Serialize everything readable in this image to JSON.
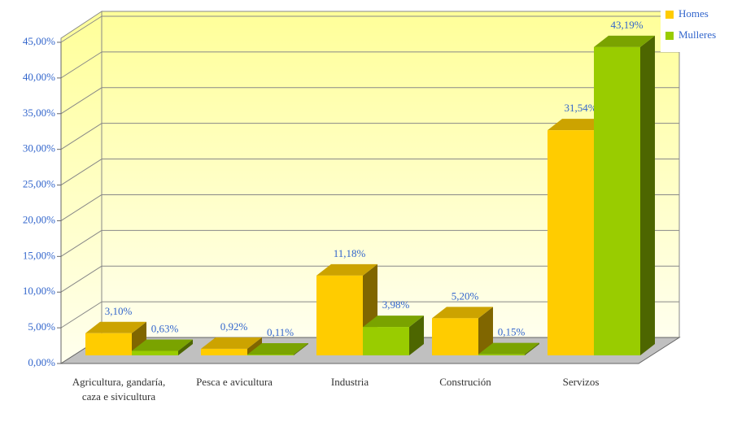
{
  "chart_data": {
    "type": "bar3d",
    "categories": [
      "Agricultura, gandaría, caza e sivicultura",
      "Pesca e avicultura",
      "Industria",
      "Construción",
      "Servizos"
    ],
    "series": [
      {
        "name": "Homes",
        "color": "#ffcc00",
        "values": [
          3.1,
          0.92,
          11.18,
          5.2,
          31.54
        ],
        "value_labels": [
          "3,10%",
          "0,92%",
          "11,18%",
          "5,20%",
          "31,54%"
        ]
      },
      {
        "name": "Mulleres",
        "color": "#99cc00",
        "values": [
          0.63,
          0.11,
          3.98,
          0.15,
          43.19
        ],
        "value_labels": [
          "0,63%",
          "0,11%",
          "3,98%",
          "0,15%",
          "43,19%"
        ]
      }
    ],
    "ylim": [
      0,
      45
    ],
    "yticks": [
      {
        "value": 0,
        "label": "0,00%"
      },
      {
        "value": 5,
        "label": "5,00%"
      },
      {
        "value": 10,
        "label": "10,00%"
      },
      {
        "value": 15,
        "label": "15,00%"
      },
      {
        "value": 20,
        "label": "20,00%"
      },
      {
        "value": 25,
        "label": "25,00%"
      },
      {
        "value": 30,
        "label": "30,00%"
      },
      {
        "value": 35,
        "label": "35,00%"
      },
      {
        "value": 40,
        "label": "40,00%"
      },
      {
        "value": 45,
        "label": "45,00%"
      }
    ],
    "grid": true,
    "legend": "top-right"
  }
}
